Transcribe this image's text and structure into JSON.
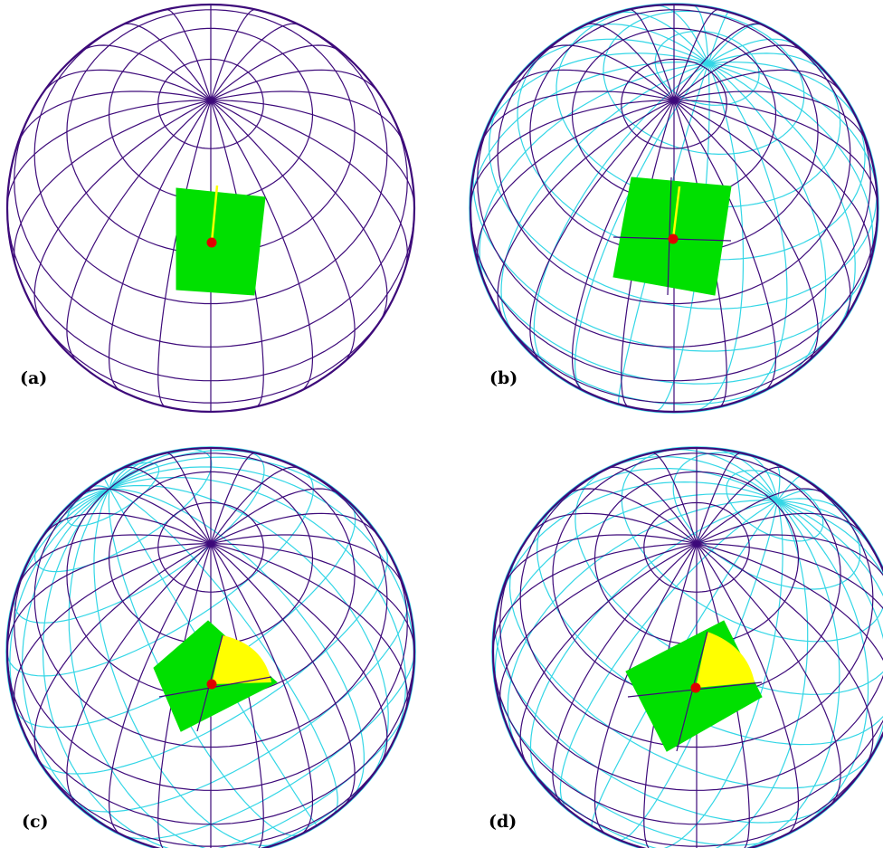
{
  "figure": {
    "panels": [
      {
        "label": "(a)",
        "rotated_grid": false,
        "wedge": false
      },
      {
        "label": "(b)",
        "rotated_grid": true,
        "wedge": false
      },
      {
        "label": "(c)",
        "rotated_grid": true,
        "wedge": true
      },
      {
        "label": "(d)",
        "rotated_grid": true,
        "wedge": true
      }
    ],
    "colors": {
      "base_grid": "#3d0a7a",
      "rotated_grid": "#33d6e6",
      "patch_fill": "#00e000",
      "wedge_fill": "#ffff00",
      "vector": "#ffff00",
      "point": "#e00000",
      "background": "#ffffff"
    }
  }
}
